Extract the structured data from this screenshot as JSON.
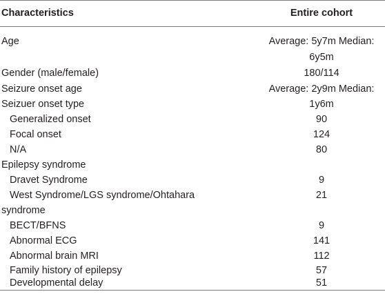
{
  "table": {
    "header": [
      "Characteristics",
      "Entire cohort"
    ],
    "rows": [
      {
        "label": "Age",
        "value": "Average: 5y7m Median:"
      },
      {
        "value": "6y5m"
      },
      {
        "label": "Gender (male/female)",
        "value": "180/114"
      },
      {
        "label": "Seizure onset age",
        "value": "Average: 2y9m Median:"
      },
      {
        "label": "Seizuer onset type",
        "value": "1y6m"
      },
      {
        "label": "Generalized onset",
        "value": "90"
      },
      {
        "label": "Focal onset",
        "value": "124"
      },
      {
        "label": "N/A",
        "value": "80"
      },
      {
        "label": "Epilepsy syndrome"
      },
      {
        "label": "Dravet Syndrome",
        "value": "9"
      },
      {
        "label": "West Syndrome/LGS syndrome/Ohtahara",
        "value": "21"
      },
      {
        "label": "syndrome"
      },
      {
        "label": "BECT/BFNS",
        "value": "9"
      },
      {
        "label": "Abnormal ECG",
        "value": "141"
      },
      {
        "label": "Abnormal brain MRI",
        "value": "112"
      },
      {
        "label": "Family history of epilepsy",
        "value": "57"
      },
      {
        "label": "Developmental delay",
        "value": "51"
      }
    ]
  }
}
